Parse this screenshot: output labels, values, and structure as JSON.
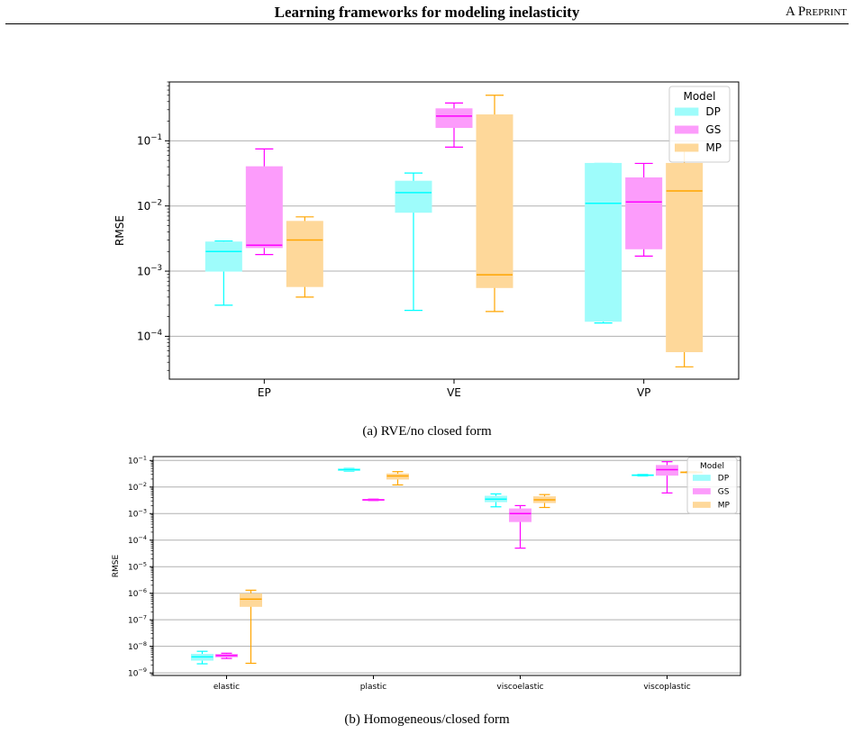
{
  "header": {
    "title": "Learning frameworks for modeling inelasticity",
    "right_first": "A ",
    "right_p": "P",
    "right_rest": "REPRINT"
  },
  "captions": {
    "a": "(a) RVE/no closed form",
    "b": "(b) Homogeneous/closed form"
  },
  "colors": {
    "DP": "#00ffff",
    "GS": "#ff00ff",
    "MP": "#ffa500",
    "DP_fill": "#9efcfb",
    "GS_fill": "#fc9cfb",
    "MP_fill": "#fed89a",
    "grid": "#b0b0b0"
  },
  "chart_data": [
    {
      "type": "box",
      "title": "",
      "xlabel": "",
      "ylabel": "RMSE",
      "yscale": "log",
      "ylim": [
        2.2e-05,
        0.8
      ],
      "yticks": [
        {
          "v": 0.1,
          "m": "10",
          "e": "−1"
        },
        {
          "v": 0.01,
          "m": "10",
          "e": "−2"
        },
        {
          "v": 0.001,
          "m": "10",
          "e": "−3"
        },
        {
          "v": 0.0001,
          "m": "10",
          "e": "−4"
        }
      ],
      "grid": "y-major",
      "legend": {
        "title": "Model",
        "position": "top-right"
      },
      "categories": [
        "EP",
        "VE",
        "VP"
      ],
      "series": [
        {
          "name": "DP",
          "boxes": [
            {
              "min": 0.0003,
              "q1": 0.001,
              "median": 0.002,
              "q3": 0.0028,
              "max": 0.0029
            },
            {
              "min": 0.00025,
              "q1": 0.008,
              "median": 0.016,
              "q3": 0.024,
              "max": 0.032
            },
            {
              "min": 0.00016,
              "q1": 0.00017,
              "median": 0.011,
              "q3": 0.045,
              "max": 0.045
            }
          ]
        },
        {
          "name": "GS",
          "boxes": [
            {
              "min": 0.0018,
              "q1": 0.0023,
              "median": 0.0025,
              "q3": 0.04,
              "max": 0.075
            },
            {
              "min": 0.08,
              "q1": 0.16,
              "median": 0.24,
              "q3": 0.31,
              "max": 0.38
            },
            {
              "min": 0.0017,
              "q1": 0.0022,
              "median": 0.0115,
              "q3": 0.027,
              "max": 0.045
            }
          ]
        },
        {
          "name": "MP",
          "boxes": [
            {
              "min": 0.0004,
              "q1": 0.00058,
              "median": 0.003,
              "q3": 0.0058,
              "max": 0.0068
            },
            {
              "min": 0.00024,
              "q1": 0.00056,
              "median": 0.00088,
              "q3": 0.25,
              "max": 0.5
            },
            {
              "min": 3.4e-05,
              "q1": 5.8e-05,
              "median": 0.017,
              "q3": 0.045,
              "max": 0.07
            }
          ]
        }
      ]
    },
    {
      "type": "box",
      "title": "",
      "xlabel": "",
      "ylabel": "RMSE",
      "yscale": "log",
      "ylim": [
        8e-10,
        0.14
      ],
      "yticks": [
        {
          "v": 0.1,
          "m": "10",
          "e": "−1"
        },
        {
          "v": 0.01,
          "m": "10",
          "e": "−2"
        },
        {
          "v": 0.001,
          "m": "10",
          "e": "−3"
        },
        {
          "v": 0.0001,
          "m": "10",
          "e": "−4"
        },
        {
          "v": 1e-05,
          "m": "10",
          "e": "−5"
        },
        {
          "v": 1e-06,
          "m": "10",
          "e": "−6"
        },
        {
          "v": 1e-07,
          "m": "10",
          "e": "−7"
        },
        {
          "v": 1e-08,
          "m": "10",
          "e": "−8"
        },
        {
          "v": 1e-09,
          "m": "10",
          "e": "−9"
        }
      ],
      "grid": "y-major",
      "legend": {
        "title": "Model",
        "position": "top-right"
      },
      "categories": [
        "elastic",
        "plastic",
        "viscoelastic",
        "viscoplastic"
      ],
      "series": [
        {
          "name": "DP",
          "boxes": [
            {
              "min": 2.2e-09,
              "q1": 3e-09,
              "median": 4e-09,
              "q3": 5e-09,
              "max": 6.5e-09
            },
            {
              "min": 0.04,
              "q1": 0.042,
              "median": 0.045,
              "q3": 0.048,
              "max": 0.05
            },
            {
              "min": 0.0018,
              "q1": 0.0028,
              "median": 0.0035,
              "q3": 0.0045,
              "max": 0.0055
            },
            {
              "min": 0.026,
              "q1": 0.027,
              "median": 0.028,
              "q3": 0.029,
              "max": 0.03
            }
          ]
        },
        {
          "name": "GS",
          "boxes": [
            {
              "min": 3.5e-09,
              "q1": 4e-09,
              "median": 4.5e-09,
              "q3": 5e-09,
              "max": 5.5e-09
            },
            {
              "min": 0.0031,
              "q1": 0.0032,
              "median": 0.0033,
              "q3": 0.0034,
              "max": 0.0035
            },
            {
              "min": 5e-05,
              "q1": 0.0005,
              "median": 0.001,
              "q3": 0.0015,
              "max": 0.002
            },
            {
              "min": 0.006,
              "q1": 0.028,
              "median": 0.045,
              "q3": 0.065,
              "max": 0.09
            }
          ]
        },
        {
          "name": "MP",
          "boxes": [
            {
              "min": 2.3e-09,
              "q1": 3.2e-07,
              "median": 6e-07,
              "q3": 9.5e-07,
              "max": 1.3e-06
            },
            {
              "min": 0.012,
              "q1": 0.02,
              "median": 0.026,
              "q3": 0.031,
              "max": 0.038
            },
            {
              "min": 0.0017,
              "q1": 0.0026,
              "median": 0.0033,
              "q3": 0.0043,
              "max": 0.0052
            },
            {
              "min": 0.034,
              "q1": 0.035,
              "median": 0.036,
              "q3": 0.037,
              "max": 0.038
            }
          ]
        }
      ]
    }
  ]
}
